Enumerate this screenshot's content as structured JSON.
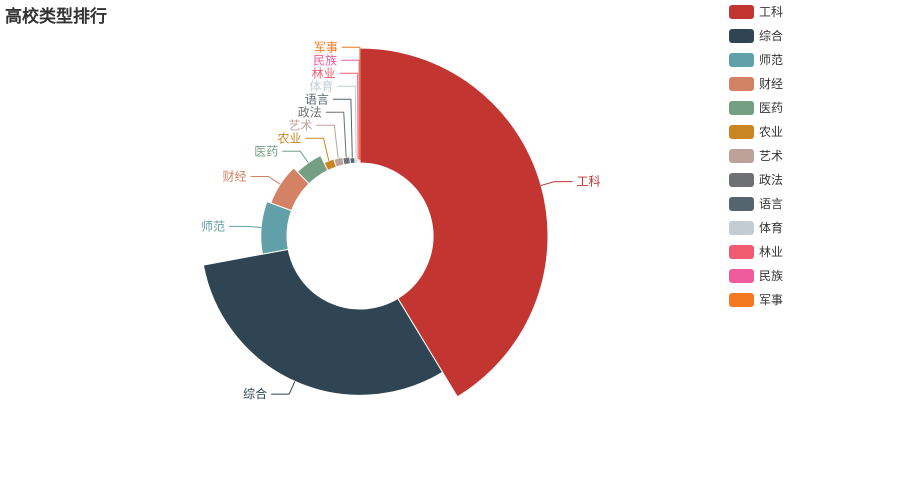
{
  "chart_data": {
    "type": "pie",
    "variant": "rose-donut",
    "title": "高校类型排行",
    "legend_position": "top-right",
    "categories": [
      "工科",
      "综合",
      "师范",
      "财经",
      "医药",
      "农业",
      "艺术",
      "政法",
      "语言",
      "体育",
      "林业",
      "民族",
      "军事"
    ],
    "values": [
      820,
      610,
      170,
      140,
      100,
      40,
      35,
      28,
      20,
      10,
      6,
      4,
      1
    ],
    "colors": [
      "#c23531",
      "#2f4554",
      "#61a0a8",
      "#d48265",
      "#749f83",
      "#ca8622",
      "#bda29a",
      "#6e7074",
      "#546570",
      "#c4ccd3",
      "#f05b72",
      "#ef5b9c",
      "#f47920"
    ]
  }
}
